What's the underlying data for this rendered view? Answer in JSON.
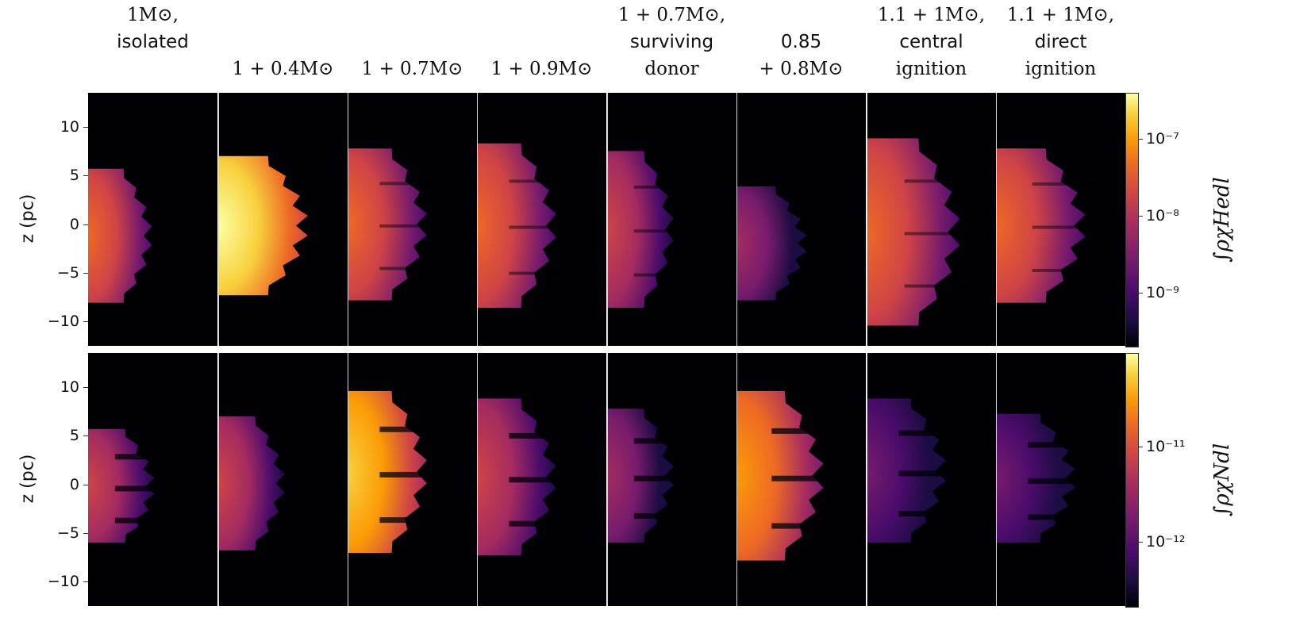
{
  "columns": [
    {
      "line1": "1M⊙,",
      "line2": "isolated",
      "line3": ""
    },
    {
      "line1": "",
      "line2": "",
      "line3": "1 + 0.4M⊙"
    },
    {
      "line1": "",
      "line2": "",
      "line3": "1 + 0.7M⊙"
    },
    {
      "line1": "",
      "line2": "",
      "line3": "1 + 0.9M⊙"
    },
    {
      "line1": "1 + 0.7M⊙,",
      "line2": "surviving",
      "line3": "donor"
    },
    {
      "line1": "",
      "line2": "0.85",
      "line3": "+ 0.8M⊙"
    },
    {
      "line1": "1.1 + 1M⊙,",
      "line2": "central",
      "line3": "ignition"
    },
    {
      "line1": "1.1 + 1M⊙,",
      "line2": "direct",
      "line3": "ignition"
    }
  ],
  "rows": [
    {
      "ylabel": "z (pc)",
      "yticks": [
        "10",
        "5",
        "0",
        "−5",
        "−10"
      ],
      "colorbar_label": "∫ρχHedl",
      "colorbar_ticks": [
        "10⁻⁷",
        "10⁻⁸",
        "10⁻⁹"
      ]
    },
    {
      "ylabel": "z (pc)",
      "yticks": [
        "10",
        "5",
        "0",
        "−5",
        "−10"
      ],
      "colorbar_label": "∫ρχNdl",
      "colorbar_ticks": [
        "10⁻¹¹",
        "10⁻¹²"
      ]
    }
  ],
  "colormap": "inferno",
  "colors": {
    "background": "#000005",
    "divider": "#d8d8d8"
  }
}
